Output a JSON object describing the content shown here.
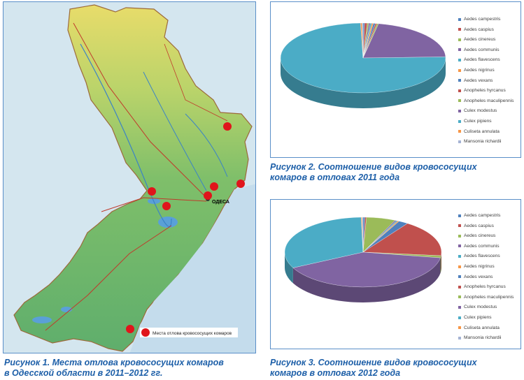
{
  "map": {
    "city_label": "ОДЕСА",
    "legend_label": "Места отлова кровососущих комаров"
  },
  "captions": {
    "fig1": [
      "Рисунок 1. Места отлова кровососущих комаров",
      "в Одесской области в 2011–2012 гг."
    ],
    "fig2": [
      "Рисунок 2. Соотношение видов кровососущих",
      "комаров в отловах 2011 года"
    ],
    "fig3": [
      "Рисунок 3. Соотношение видов кровососущих",
      "комаров в отловах 2012 года"
    ]
  },
  "chart_data": [
    {
      "type": "pie",
      "categories": [
        "Aedes campestris",
        "Aedes caspius",
        "Aedes cinereus",
        "Aedes communis",
        "Aedes flavescens",
        "Aedes nigrinus",
        "Aedes vexans",
        "Anopheles hyrcanus",
        "Anopheles maculipennis",
        "Culex modestus",
        "Culex pipiens",
        "Culiseta annulata",
        "Mansonia richardii"
      ],
      "values": [
        0.3,
        0.5,
        0.3,
        0.3,
        0.3,
        0.3,
        0.4,
        0.3,
        0.3,
        21.5,
        75.0,
        0.3,
        0.2
      ],
      "colors": [
        "#4f81bd",
        "#c0504d",
        "#9bbb59",
        "#8064a2",
        "#4bacc6",
        "#f79646",
        "#4f81bd",
        "#c0504d",
        "#9bbb59",
        "#8064a2",
        "#4bacc6",
        "#f79646",
        "#a5b3d4"
      ],
      "legend_position": "right"
    },
    {
      "type": "pie",
      "categories": [
        "Aedes campestris",
        "Aedes caspius",
        "Aedes cinereus",
        "Aedes communis",
        "Aedes flavescens",
        "Aedes nigrinus",
        "Aedes vexans",
        "Anopheles hyrcanus",
        "Anopheles maculipennis",
        "Culex modestus",
        "Culex pipiens",
        "Culiseta annulata",
        "Mansonia richardii"
      ],
      "values": [
        0.4,
        0.3,
        6.0,
        0.3,
        0.3,
        0.3,
        2.0,
        17.0,
        1.0,
        40.0,
        32.0,
        0.2,
        0.2
      ],
      "colors": [
        "#4f81bd",
        "#c0504d",
        "#9bbb59",
        "#8064a2",
        "#4bacc6",
        "#f79646",
        "#4f81bd",
        "#c0504d",
        "#9bbb59",
        "#8064a2",
        "#4bacc6",
        "#f79646",
        "#a5b3d4"
      ],
      "legend_position": "right"
    }
  ]
}
